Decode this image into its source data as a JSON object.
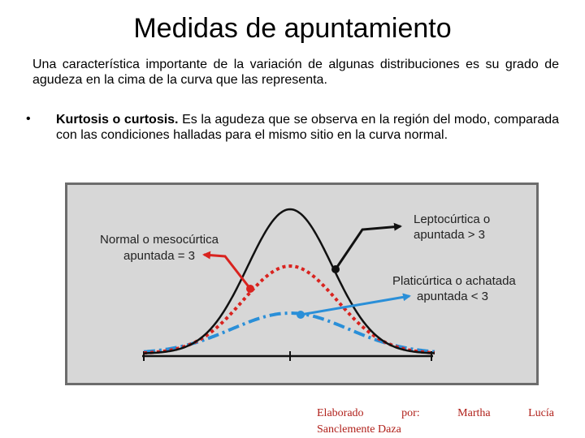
{
  "slide": {
    "title": "Medidas de apuntamiento",
    "intro": "Una característica importante de la variación de algunas distribuciones es su grado de agudeza en la cima de la curva que las representa.",
    "bullet": {
      "marker": "•",
      "term": "Kurtosis o curtosis.",
      "text": " Es la agudeza que se observa en la región del modo, comparada con las condiciones halladas para el mismo sitio en la curva normal."
    },
    "credit": {
      "w1": "Elaborado",
      "w2": "por:",
      "w3": "Martha",
      "w4": "Lucía",
      "line2": "Sanclemente Daza"
    }
  },
  "figure": {
    "labels": {
      "normal_1": "Normal o mesocúrtica",
      "normal_2": "apuntada = 3",
      "lepto_1": "Leptocúrtica o",
      "lepto_2": "apuntada > 3",
      "plati_1": "Platicúrtica o achatada",
      "plati_2": "apuntada < 3"
    },
    "colors": {
      "background": "#d7d7d7",
      "frame": "#6c6c6c",
      "leptokurtic": "#111111",
      "mesokurtic": "#d9231f",
      "platykurtic": "#2a8fd8"
    }
  }
}
